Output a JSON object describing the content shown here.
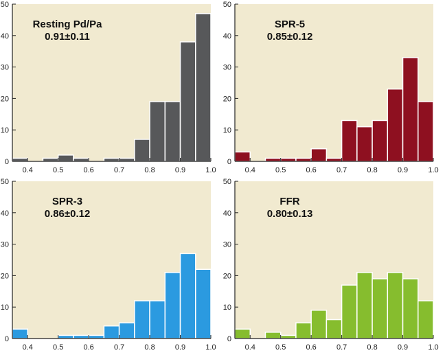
{
  "chart_data": [
    {
      "type": "bar",
      "title": "Resting Pd/Pa",
      "subtitle": "0.91±0.11",
      "color": "#57585a",
      "bin_width": 0.05,
      "x": [
        0.375,
        0.475,
        0.525,
        0.575,
        0.675,
        0.725,
        0.775,
        0.825,
        0.875,
        0.925,
        0.975
      ],
      "values": [
        1,
        1,
        2,
        1,
        1,
        1,
        7,
        19,
        19,
        38,
        47
      ],
      "xlim": [
        0.35,
        1.0
      ],
      "ylim": [
        0,
        50
      ],
      "xticks": [
        "0.4",
        "0.5",
        "0.6",
        "0.7",
        "0.8",
        "0.9",
        "1.0"
      ],
      "yticks": [
        "0",
        "10",
        "20",
        "30",
        "40",
        "50"
      ]
    },
    {
      "type": "bar",
      "title": "SPR-5",
      "subtitle": "0.85±0.12",
      "color": "#8e1020",
      "bin_width": 0.05,
      "x": [
        0.375,
        0.475,
        0.525,
        0.575,
        0.625,
        0.675,
        0.725,
        0.775,
        0.825,
        0.875,
        0.925,
        0.975
      ],
      "values": [
        3,
        1,
        1,
        1,
        4,
        1,
        13,
        11,
        13,
        23,
        33,
        19
      ],
      "xlim": [
        0.35,
        1.0
      ],
      "ylim": [
        0,
        50
      ],
      "xticks": [
        "0.4",
        "0.5",
        "0.6",
        "0.7",
        "0.8",
        "0.9",
        "1.0"
      ],
      "yticks": [
        "0",
        "10",
        "20",
        "30",
        "40",
        "50"
      ]
    },
    {
      "type": "bar",
      "title": "SPR-3",
      "subtitle": "0.86±0.12",
      "color": "#2b9ae0",
      "bin_width": 0.05,
      "x": [
        0.375,
        0.525,
        0.575,
        0.625,
        0.675,
        0.725,
        0.775,
        0.825,
        0.875,
        0.925,
        0.975
      ],
      "values": [
        3,
        1,
        1,
        1,
        4,
        5,
        12,
        12,
        21,
        27,
        22
      ],
      "xlim": [
        0.35,
        1.0
      ],
      "ylim": [
        0,
        50
      ],
      "xticks": [
        "0.4",
        "0.5",
        "0.6",
        "0.7",
        "0.8",
        "0.9",
        "1.0"
      ],
      "yticks": [
        "0",
        "10",
        "20",
        "30",
        "40",
        "50"
      ]
    },
    {
      "type": "bar",
      "title": "FFR",
      "subtitle": "0.80±0.13",
      "color": "#86bd2e",
      "bin_width": 0.05,
      "x": [
        0.375,
        0.475,
        0.525,
        0.575,
        0.625,
        0.675,
        0.725,
        0.775,
        0.825,
        0.875,
        0.925,
        0.975
      ],
      "values": [
        3,
        2,
        1,
        5,
        9,
        6,
        17,
        21,
        19,
        21,
        19,
        12
      ],
      "xlim": [
        0.35,
        1.0
      ],
      "ylim": [
        0,
        50
      ],
      "xticks": [
        "0.4",
        "0.5",
        "0.6",
        "0.7",
        "0.8",
        "0.9",
        "1.0"
      ],
      "yticks": [
        "0",
        "10",
        "20",
        "30",
        "40",
        "50"
      ]
    }
  ],
  "style": {
    "plot_background": "#f1ead0",
    "axis_color": "#222222"
  }
}
